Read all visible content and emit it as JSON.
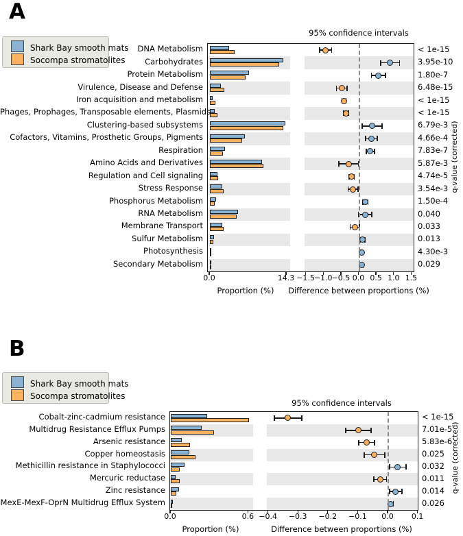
{
  "chart_data": [
    {
      "panel": "A",
      "type": "extended_error_bar",
      "title": "95% confidence intervals",
      "qvalue_axis_label": "q-value (corrected)",
      "categories": [
        "DNA Metabolism",
        "Carbohydrates",
        "Protein Metabolism",
        "Virulence, Disease and Defense",
        "Iron acquisition and metabolism",
        "Phages, Prophages, Transposable elements, Plasmids",
        "Clustering-based subsystems",
        "Cofactors, Vitamins, Prosthetic Groups, Pigments",
        "Respiration",
        "Amino Acids and Derivatives",
        "Regulation and Cell signaling",
        "Stress Response",
        "Phosphorus Metabolism",
        "RNA Metabolism",
        "Membrane Transport",
        "Sulfur Metabolism",
        "Photosynthesis",
        "Secondary Metabolism"
      ],
      "series": [
        {
          "name": "Shark Bay smooth mats",
          "color": "#89b2d3",
          "values": [
            3.6,
            13.7,
            7.25,
            2.05,
            0.55,
            0.95,
            14.1,
            6.5,
            2.75,
            9.7,
            1.35,
            2.35,
            1.15,
            5.25,
            2.35,
            0.8,
            0.1,
            0.28
          ]
        },
        {
          "name": "Socompa stromatolites",
          "color": "#fcb160",
          "values": [
            4.55,
            12.9,
            6.7,
            2.65,
            1.0,
            1.35,
            13.65,
            6.05,
            2.45,
            10.0,
            1.55,
            2.55,
            0.95,
            5.0,
            2.5,
            0.62,
            0.03,
            0.2
          ]
        }
      ],
      "difference": [
        {
          "value": -0.95,
          "ci": 0.17
        },
        {
          "value": 0.88,
          "ci": 0.27
        },
        {
          "value": 0.55,
          "ci": 0.2
        },
        {
          "value": -0.49,
          "ci": 0.15
        },
        {
          "value": -0.43,
          "ci": 0.06
        },
        {
          "value": -0.37,
          "ci": 0.07
        },
        {
          "value": 0.37,
          "ci": 0.28
        },
        {
          "value": 0.35,
          "ci": 0.17
        },
        {
          "value": 0.32,
          "ci": 0.12
        },
        {
          "value": -0.3,
          "ci": 0.28
        },
        {
          "value": -0.21,
          "ci": 0.07
        },
        {
          "value": -0.17,
          "ci": 0.14
        },
        {
          "value": 0.18,
          "ci": 0.07
        },
        {
          "value": 0.17,
          "ci": 0.19
        },
        {
          "value": -0.12,
          "ci": 0.13
        },
        {
          "value": 0.1,
          "ci": 0.07
        },
        {
          "value": 0.07,
          "ci": 0.02
        },
        {
          "value": 0.07,
          "ci": 0.05
        }
      ],
      "q_values": [
        "< 1e-15",
        "3.95e-10",
        "1.80e-7",
        "6.48e-15",
        "< 1e-15",
        "< 1e-15",
        "6.79e-3",
        "4.66e-4",
        "7.83e-7",
        "5.87e-3",
        "4.74e-5",
        "3.54e-3",
        "1.50e-4",
        "0.040",
        "0.033",
        "0.013",
        "4.30e-3",
        "0.029"
      ],
      "prop_axis": {
        "label": "Proportion (%)",
        "tick_values": [
          0,
          14.3
        ],
        "tick_labels": [
          "0.0",
          "14.3"
        ],
        "max": 14.3
      },
      "diff_axis": {
        "label": "Difference between proportions (%)",
        "tick_values": [
          -1.5,
          -1.0,
          -0.5,
          0.0,
          0.5,
          1.0,
          1.5
        ],
        "tick_labels": [
          "−1.5",
          "−1.0",
          "−0.5",
          "0.0",
          "0.5",
          "1.0",
          "1.5"
        ],
        "range": [
          -1.5,
          1.5
        ]
      }
    },
    {
      "panel": "B",
      "type": "extended_error_bar",
      "title": "95% confidence intervals",
      "qvalue_axis_label": "q-value (corrected)",
      "categories": [
        "Cobalt-zinc-cadmium resistance",
        "Multidrug Resistance Efflux Pumps",
        "Arsenic resistance",
        "Copper homeostasis",
        "Methicillin resistance in Staphylococci",
        "Mercuric reductase",
        "Zinc resistance",
        "MexE-MexF-OprN Multidrug Efflux System"
      ],
      "series": [
        {
          "name": "Shark Bay smooth mats",
          "color": "#89b2d3",
          "values": [
            0.28,
            0.24,
            0.085,
            0.145,
            0.105,
            0.035,
            0.062,
            0.014
          ]
        },
        {
          "name": "Socompa stromatolites",
          "color": "#fcb160",
          "values": [
            0.605,
            0.335,
            0.15,
            0.19,
            0.07,
            0.067,
            0.04,
            0.005
          ]
        }
      ],
      "difference": [
        {
          "value": -0.335,
          "ci": 0.046
        },
        {
          "value": -0.1,
          "ci": 0.042
        },
        {
          "value": -0.072,
          "ci": 0.026
        },
        {
          "value": -0.046,
          "ci": 0.034
        },
        {
          "value": 0.032,
          "ci": 0.028
        },
        {
          "value": -0.027,
          "ci": 0.021
        },
        {
          "value": 0.025,
          "ci": 0.021
        },
        {
          "value": 0.009,
          "ci": 0.008
        }
      ],
      "q_values": [
        "< 1e-15",
        "7.01e-5",
        "5.83e-6",
        "0.025",
        "0.032",
        "0.011",
        "0.014",
        "0.026"
      ],
      "prop_axis": {
        "label": "Proportion (%)",
        "tick_values": [
          0,
          0.6
        ],
        "tick_labels": [
          "0.0",
          "0.6"
        ],
        "max": 0.6
      },
      "diff_axis": {
        "label": "Difference between proportions (%)",
        "tick_values": [
          -0.4,
          -0.3,
          -0.2,
          -0.1,
          0.0,
          0.1
        ],
        "tick_labels": [
          "−0.4",
          "−0.3",
          "−0.2",
          "−0.1",
          "0.0",
          "0.1"
        ],
        "range": [
          -0.4,
          0.1
        ]
      }
    }
  ]
}
